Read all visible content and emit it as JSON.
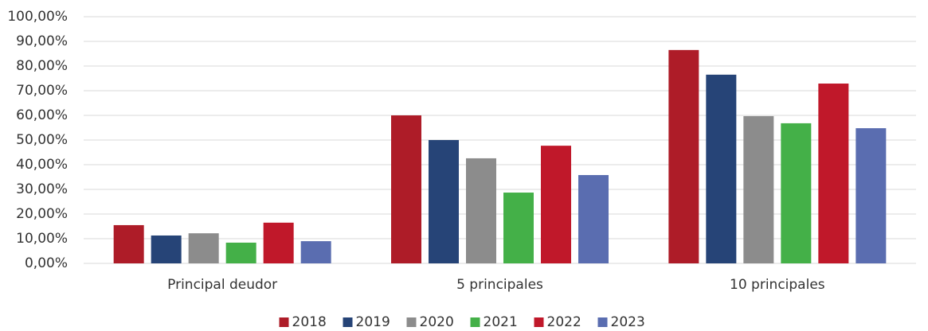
{
  "chart_data": {
    "type": "bar",
    "categories": [
      "Principal deudor",
      "5 principales",
      "10 principales"
    ],
    "series": [
      {
        "name": "2018",
        "color": "#ae1c28",
        "values": [
          15.5,
          60.0,
          86.5
        ]
      },
      {
        "name": "2019",
        "color": "#264477",
        "values": [
          11.3,
          50.0,
          76.5
        ]
      },
      {
        "name": "2020",
        "color": "#8c8c8c",
        "values": [
          12.2,
          42.6,
          59.7
        ]
      },
      {
        "name": "2021",
        "color": "#44b048",
        "values": [
          8.4,
          28.7,
          56.8
        ]
      },
      {
        "name": "2022",
        "color": "#c0182a",
        "values": [
          16.5,
          47.7,
          72.9
        ]
      },
      {
        "name": "2023",
        "color": "#5a6db0",
        "values": [
          9.0,
          35.8,
          54.8
        ]
      }
    ],
    "ylim": [
      0,
      100
    ],
    "yticks": [
      {
        "value": 0,
        "label": "0,00%"
      },
      {
        "value": 10,
        "label": "10,00%"
      },
      {
        "value": 20,
        "label": "20,00%"
      },
      {
        "value": 30,
        "label": "30,00%"
      },
      {
        "value": 40,
        "label": "40,00%"
      },
      {
        "value": 50,
        "label": "50,00%"
      },
      {
        "value": 60,
        "label": "60,00%"
      },
      {
        "value": 70,
        "label": "70,00%"
      },
      {
        "value": 80,
        "label": "80,00%"
      },
      {
        "value": 90,
        "label": "90,00%"
      },
      {
        "value": 100,
        "label": "100,00%"
      }
    ],
    "grid": true,
    "legend": "bottom"
  }
}
